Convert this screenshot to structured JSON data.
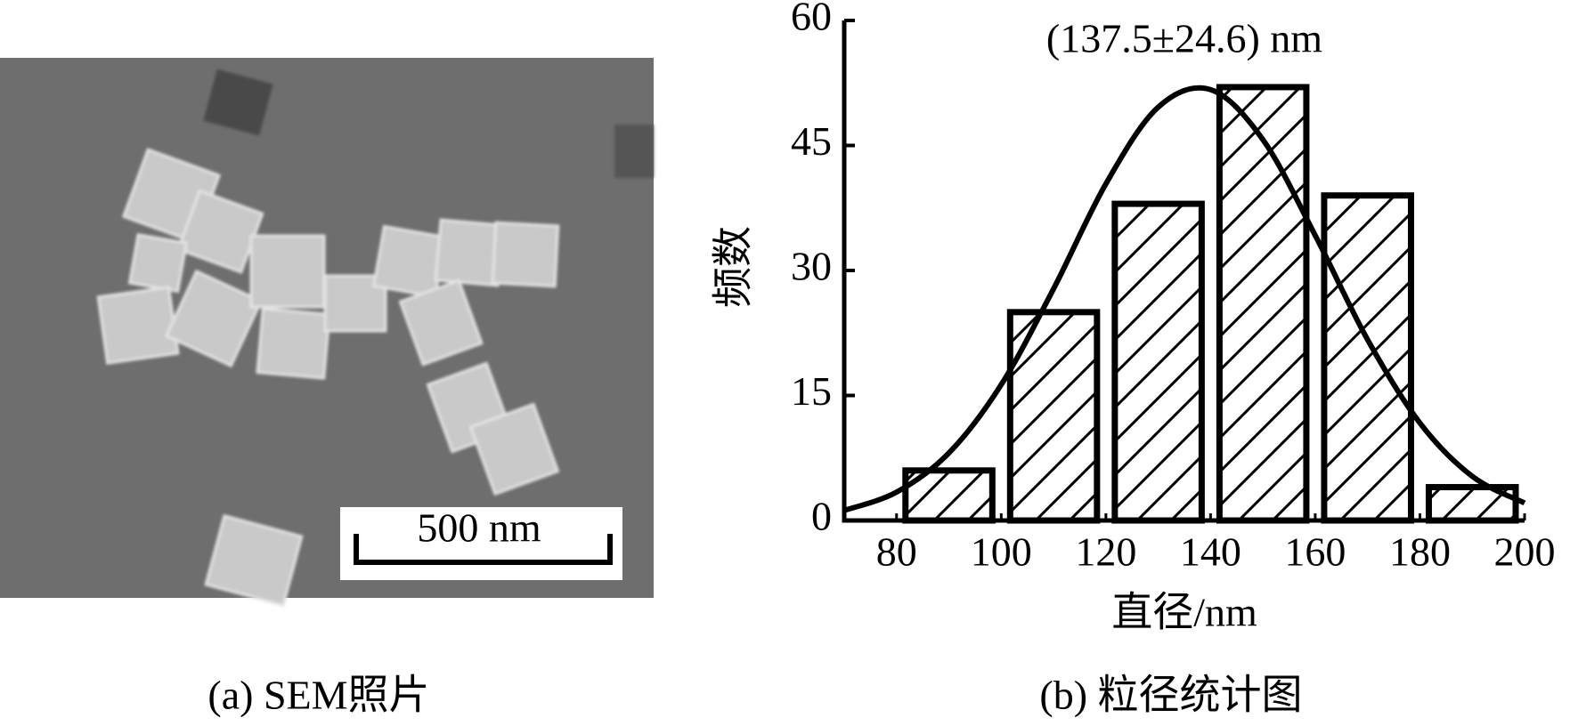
{
  "sem": {
    "caption": "(a) SEM照片",
    "scale_bar": "500 nm"
  },
  "chart_data": {
    "type": "histogram",
    "caption": "(b) 粒径统计图",
    "annotation": "(137.5±24.6)  nm",
    "xlabel": "直径/nm",
    "ylabel": "频数",
    "bins": [
      80,
      100,
      120,
      140,
      160,
      180,
      200
    ],
    "values": [
      6,
      25,
      38,
      52,
      39,
      4
    ],
    "color": "#000000",
    "hatch": true,
    "fit_curve": {
      "x": [
        70,
        80,
        90,
        100,
        110,
        120,
        130,
        140,
        150,
        160,
        170,
        180,
        190,
        200
      ],
      "values": [
        1.2,
        3.4,
        8.1,
        16.3,
        27.8,
        40.4,
        49.6,
        51.7,
        45.7,
        34.2,
        21.7,
        11.7,
        5.3,
        2.1
      ]
    },
    "xlim": [
      70,
      200
    ],
    "xticks": [
      80,
      100,
      120,
      140,
      160,
      180,
      200
    ],
    "ylim": [
      0,
      60
    ],
    "yticks": [
      0,
      15,
      30,
      45,
      60
    ]
  }
}
